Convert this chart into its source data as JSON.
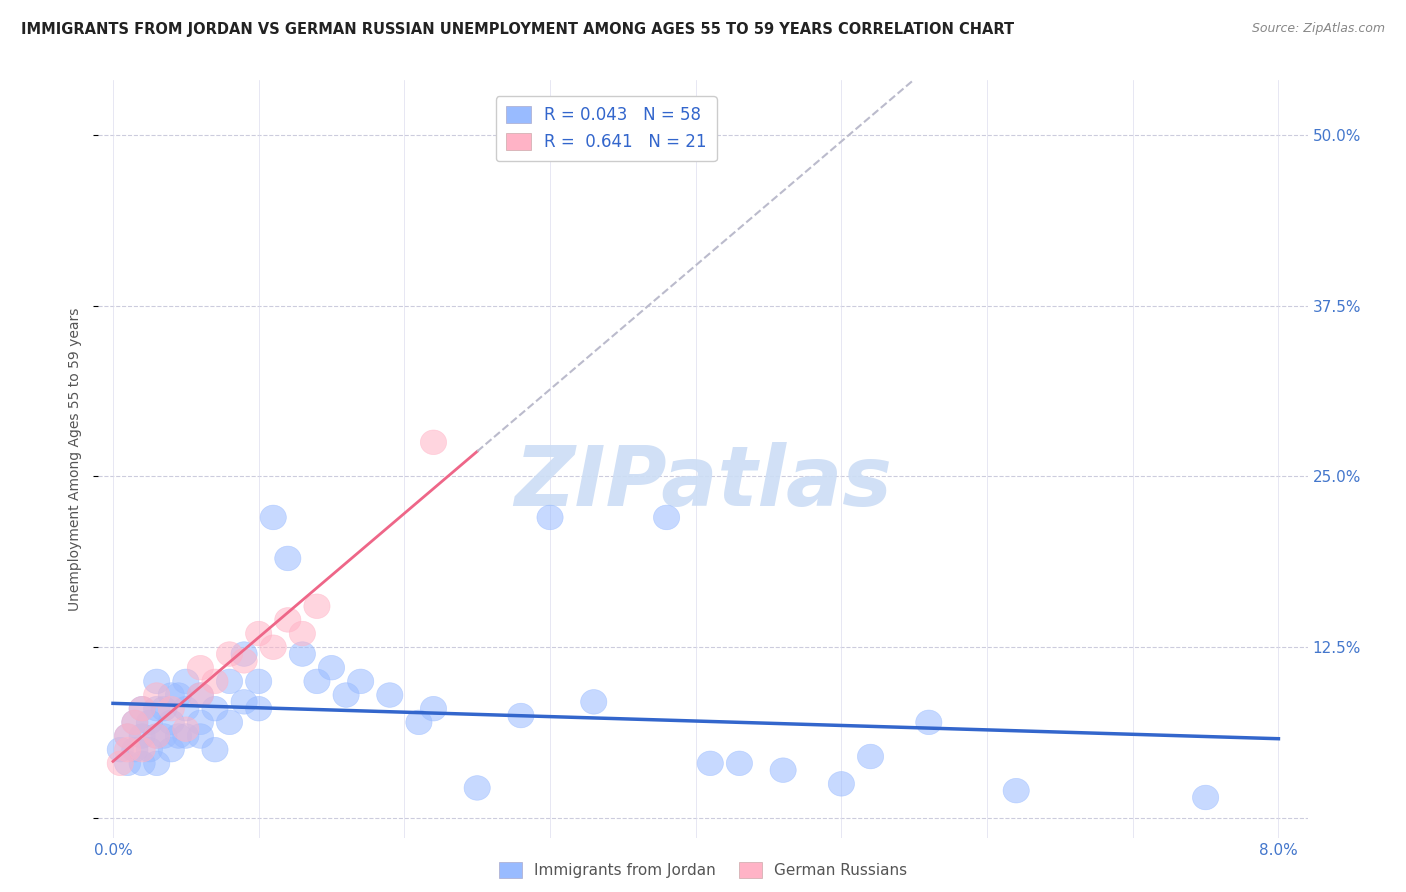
{
  "title": "IMMIGRANTS FROM JORDAN VS GERMAN RUSSIAN UNEMPLOYMENT AMONG AGES 55 TO 59 YEARS CORRELATION CHART",
  "source": "Source: ZipAtlas.com",
  "ylabel": "Unemployment Among Ages 55 to 59 years",
  "legend_jordan_R": "0.043",
  "legend_jordan_N": "58",
  "legend_russian_R": "0.641",
  "legend_russian_N": "21",
  "color_jordan": "#99BBFF",
  "color_russian": "#FFB3C6",
  "color_trend_jordan": "#3366CC",
  "color_trend_russian": "#EE6688",
  "color_trend_dashed": "#BBBBCC",
  "xlim": [
    0.0,
    0.08
  ],
  "ylim": [
    0.0,
    0.52
  ],
  "ytick_vals": [
    0.0,
    0.125,
    0.25,
    0.375,
    0.5
  ],
  "ytick_labels": [
    "",
    "12.5%",
    "25.0%",
    "37.5%",
    "50.0%"
  ],
  "watermark_text": "ZIPatlas",
  "watermark_color": "#CCDDF5",
  "jordan_x": [
    0.0005,
    0.001,
    0.001,
    0.0015,
    0.0015,
    0.002,
    0.002,
    0.002,
    0.0025,
    0.0025,
    0.003,
    0.003,
    0.003,
    0.003,
    0.0035,
    0.0035,
    0.004,
    0.004,
    0.004,
    0.0045,
    0.0045,
    0.005,
    0.005,
    0.005,
    0.006,
    0.006,
    0.006,
    0.007,
    0.007,
    0.008,
    0.008,
    0.009,
    0.009,
    0.01,
    0.01,
    0.011,
    0.012,
    0.013,
    0.014,
    0.015,
    0.016,
    0.017,
    0.019,
    0.021,
    0.022,
    0.025,
    0.028,
    0.03,
    0.033,
    0.038,
    0.041,
    0.043,
    0.046,
    0.05,
    0.052,
    0.056,
    0.062,
    0.075
  ],
  "jordan_y": [
    0.05,
    0.04,
    0.06,
    0.05,
    0.07,
    0.04,
    0.06,
    0.08,
    0.05,
    0.07,
    0.04,
    0.06,
    0.08,
    0.1,
    0.06,
    0.08,
    0.05,
    0.07,
    0.09,
    0.06,
    0.09,
    0.06,
    0.08,
    0.1,
    0.07,
    0.09,
    0.06,
    0.08,
    0.05,
    0.07,
    0.1,
    0.085,
    0.12,
    0.08,
    0.1,
    0.22,
    0.19,
    0.12,
    0.1,
    0.11,
    0.09,
    0.1,
    0.09,
    0.07,
    0.08,
    0.022,
    0.075,
    0.22,
    0.085,
    0.22,
    0.04,
    0.04,
    0.035,
    0.025,
    0.045,
    0.07,
    0.02,
    0.015
  ],
  "russian_x": [
    0.0005,
    0.001,
    0.001,
    0.0015,
    0.002,
    0.002,
    0.003,
    0.003,
    0.004,
    0.005,
    0.006,
    0.006,
    0.007,
    0.008,
    0.009,
    0.01,
    0.011,
    0.012,
    0.013,
    0.014,
    0.022
  ],
  "russian_y": [
    0.04,
    0.05,
    0.06,
    0.07,
    0.05,
    0.08,
    0.06,
    0.09,
    0.08,
    0.065,
    0.09,
    0.11,
    0.1,
    0.12,
    0.115,
    0.135,
    0.125,
    0.145,
    0.135,
    0.155,
    0.275
  ]
}
